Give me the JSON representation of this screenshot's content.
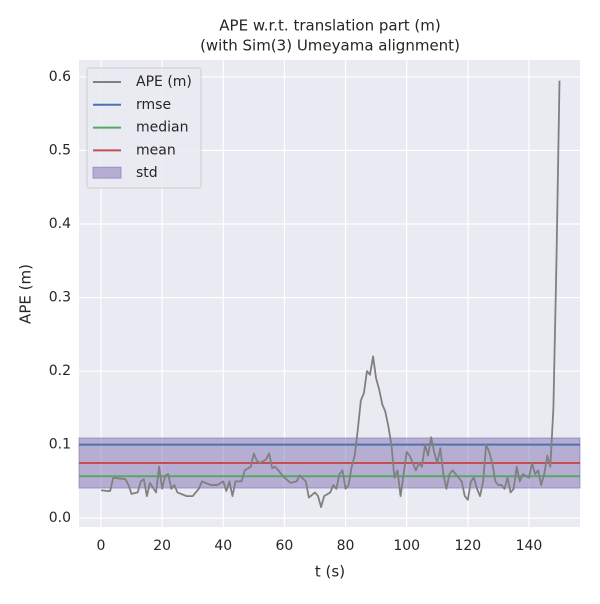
{
  "chart_data": {
    "type": "line",
    "title": "APE w.r.t. translation part (m)",
    "subtitle": "(with Sim(3) Umeyama alignment)",
    "xlabel": "t (s)",
    "ylabel": "APE (m)",
    "xlim": [
      -7.2,
      156.7
    ],
    "ylim": [
      -0.012,
      0.623
    ],
    "xticks": [
      0,
      20,
      40,
      60,
      80,
      100,
      120,
      140
    ],
    "yticks": [
      {
        "value": 0,
        "label": "0.0"
      },
      0.1,
      0.2,
      0.3,
      0.4,
      0.5,
      0.6
    ],
    "grid": true,
    "legend": "upper left",
    "x": [
      0,
      2,
      3,
      4,
      6,
      8,
      9,
      10,
      12,
      13,
      14,
      15,
      16,
      18,
      19,
      20,
      21,
      22,
      23,
      24,
      25,
      28,
      30,
      32,
      33,
      36,
      38,
      40,
      41,
      42,
      43,
      44,
      46,
      47,
      49,
      50,
      51,
      52,
      54,
      55,
      56,
      57,
      58,
      60,
      62,
      64,
      65,
      67,
      68,
      70,
      71,
      72,
      73,
      75,
      76,
      77,
      78,
      79,
      80,
      81,
      82,
      83,
      84,
      85,
      86,
      87,
      88,
      89,
      90,
      91,
      92,
      93,
      94,
      95,
      96,
      97,
      98,
      99,
      100,
      101,
      102,
      103,
      104,
      105,
      106,
      107,
      108,
      109,
      110,
      111,
      112,
      113,
      114,
      115,
      116,
      118,
      119,
      120,
      121,
      122,
      123,
      124,
      125,
      126,
      127,
      128,
      129,
      130,
      131,
      132,
      133,
      134,
      135,
      136,
      137,
      138,
      140,
      141,
      142,
      143,
      144,
      145,
      146,
      147,
      148,
      149,
      150
    ],
    "series": [
      {
        "name": "APE (m)",
        "color": "#808080",
        "values": [
          0.038,
          0.037,
          0.037,
          0.055,
          0.054,
          0.053,
          0.045,
          0.033,
          0.035,
          0.05,
          0.053,
          0.03,
          0.048,
          0.035,
          0.07,
          0.04,
          0.058,
          0.06,
          0.04,
          0.045,
          0.035,
          0.03,
          0.03,
          0.04,
          0.05,
          0.045,
          0.045,
          0.05,
          0.037,
          0.05,
          0.03,
          0.05,
          0.05,
          0.065,
          0.07,
          0.088,
          0.078,
          0.075,
          0.08,
          0.088,
          0.068,
          0.07,
          0.065,
          0.055,
          0.048,
          0.05,
          0.058,
          0.05,
          0.028,
          0.035,
          0.03,
          0.015,
          0.03,
          0.035,
          0.045,
          0.04,
          0.06,
          0.065,
          0.04,
          0.045,
          0.07,
          0.085,
          0.12,
          0.16,
          0.17,
          0.2,
          0.195,
          0.22,
          0.19,
          0.175,
          0.155,
          0.145,
          0.125,
          0.1,
          0.055,
          0.065,
          0.03,
          0.06,
          0.09,
          0.085,
          0.075,
          0.065,
          0.075,
          0.07,
          0.1,
          0.085,
          0.11,
          0.09,
          0.075,
          0.095,
          0.06,
          0.04,
          0.06,
          0.065,
          0.06,
          0.05,
          0.03,
          0.025,
          0.05,
          0.055,
          0.04,
          0.03,
          0.05,
          0.1,
          0.09,
          0.075,
          0.05,
          0.045,
          0.045,
          0.04,
          0.055,
          0.035,
          0.04,
          0.07,
          0.05,
          0.06,
          0.055,
          0.075,
          0.06,
          0.065,
          0.045,
          0.06,
          0.085,
          0.07,
          0.15,
          0.35,
          0.595
        ]
      }
    ],
    "stats": [
      {
        "name": "rmse",
        "color": "#4c72b0",
        "value": 0.1
      },
      {
        "name": "median",
        "color": "#55a868",
        "value": 0.057
      },
      {
        "name": "mean",
        "color": "#c44e52",
        "value": 0.075
      }
    ],
    "std": {
      "name": "std",
      "color": "#8172b2",
      "value": 0.034
    }
  }
}
